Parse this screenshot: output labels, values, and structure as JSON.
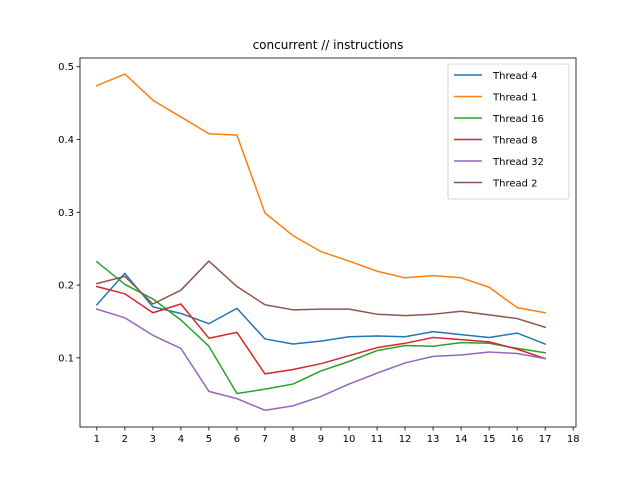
{
  "chart_data": {
    "type": "line",
    "title": "concurrent // instructions",
    "xlabel": "",
    "ylabel": "",
    "x": [
      1,
      2,
      3,
      4,
      5,
      6,
      7,
      8,
      9,
      10,
      11,
      12,
      13,
      14,
      15,
      16,
      17
    ],
    "xticks": [
      "1",
      "2",
      "3",
      "4",
      "5",
      "6",
      "7",
      "8",
      "9",
      "10",
      "11",
      "12",
      "13",
      "14",
      "15",
      "16",
      "17",
      "18"
    ],
    "yticks": [
      "0.1",
      "0.2",
      "0.3",
      "0.4",
      "0.5"
    ],
    "xlim": [
      0.4,
      18.1
    ],
    "ylim": [
      0.005,
      0.512
    ],
    "grid": false,
    "legend_position": "top-right",
    "series": [
      {
        "name": "Thread 4",
        "color": "#1f77b4",
        "values": [
          0.173,
          0.216,
          0.17,
          0.161,
          0.147,
          0.168,
          0.126,
          0.119,
          0.123,
          0.129,
          0.13,
          0.129,
          0.136,
          0.132,
          0.128,
          0.134,
          0.119
        ]
      },
      {
        "name": "Thread 1",
        "color": "#ff7f0e",
        "values": [
          0.474,
          0.49,
          0.454,
          0.431,
          0.408,
          0.406,
          0.299,
          0.268,
          0.246,
          0.233,
          0.219,
          0.21,
          0.213,
          0.21,
          0.197,
          0.169,
          0.162
        ]
      },
      {
        "name": "Thread 16",
        "color": "#2ca02c",
        "values": [
          0.232,
          0.201,
          0.181,
          0.152,
          0.116,
          0.051,
          0.057,
          0.064,
          0.082,
          0.095,
          0.11,
          0.117,
          0.116,
          0.121,
          0.12,
          0.113,
          0.107
        ]
      },
      {
        "name": "Thread 8",
        "color": "#d62728",
        "values": [
          0.198,
          0.188,
          0.162,
          0.174,
          0.127,
          0.135,
          0.078,
          0.084,
          0.092,
          0.103,
          0.114,
          0.12,
          0.128,
          0.125,
          0.122,
          0.112,
          0.099
        ]
      },
      {
        "name": "Thread 32",
        "color": "#9467bd",
        "values": [
          0.167,
          0.155,
          0.131,
          0.113,
          0.054,
          0.044,
          0.028,
          0.034,
          0.047,
          0.064,
          0.079,
          0.093,
          0.102,
          0.104,
          0.108,
          0.106,
          0.099
        ]
      },
      {
        "name": "Thread 2",
        "color": "#8c564b",
        "values": [
          0.202,
          0.212,
          0.174,
          0.193,
          0.233,
          0.198,
          0.173,
          0.166,
          0.167,
          0.167,
          0.16,
          0.158,
          0.16,
          0.164,
          0.159,
          0.154,
          0.142
        ]
      }
    ]
  }
}
